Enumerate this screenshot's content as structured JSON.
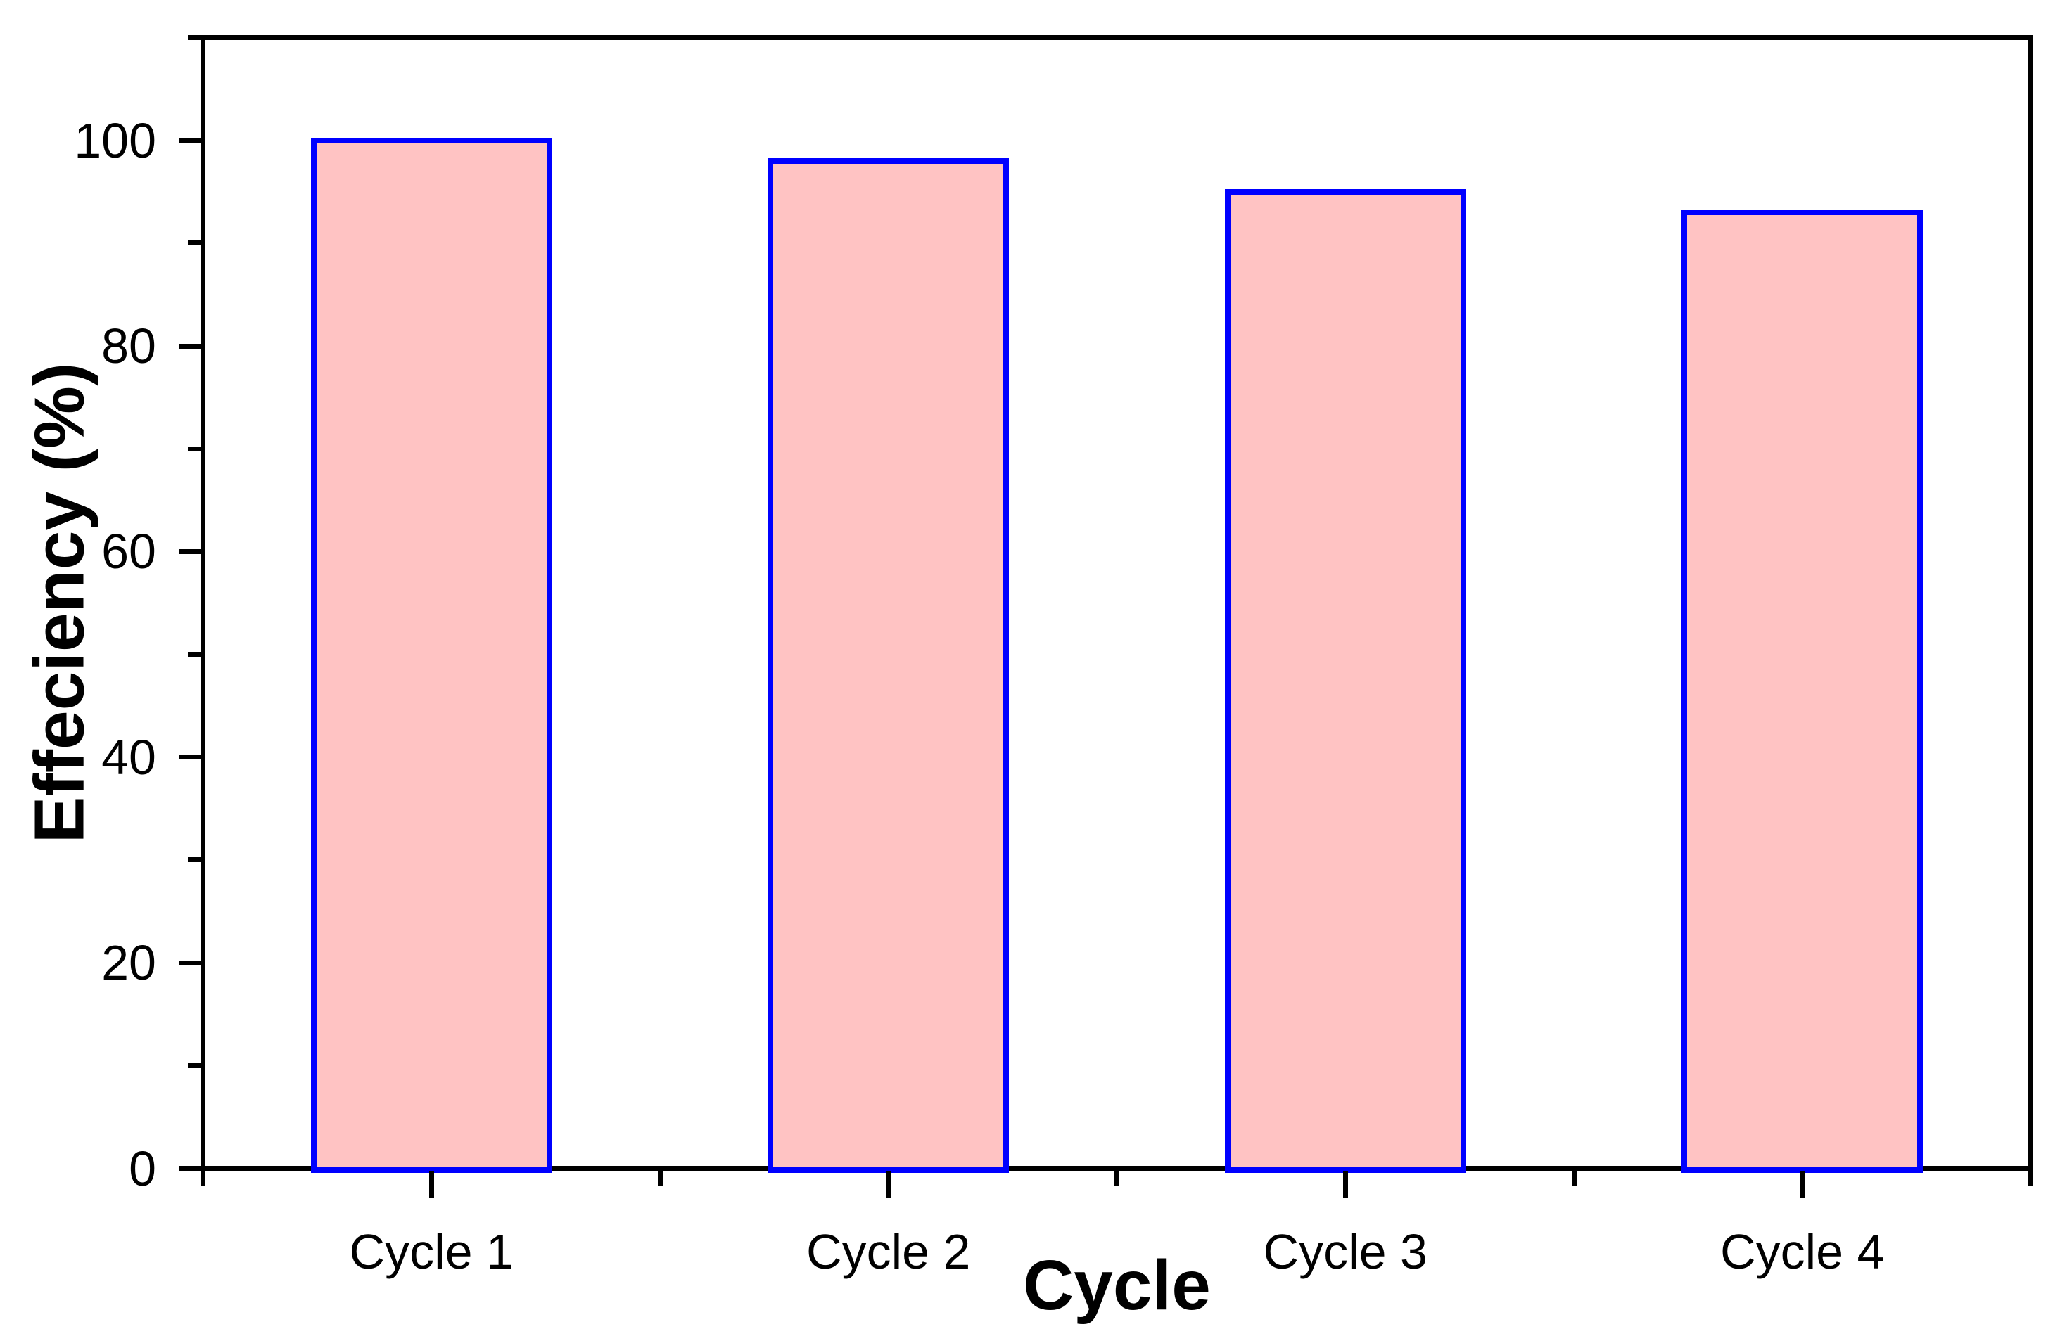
{
  "chart_data": {
    "type": "bar",
    "title": "",
    "xlabel": "Cycle",
    "ylabel": "Effeciency (%)",
    "categories": [
      "Cycle 1",
      "Cycle 2",
      "Cycle 3",
      "Cycle 4"
    ],
    "values": [
      100,
      98,
      95,
      93
    ],
    "ylim": [
      0,
      110
    ],
    "y_major_ticks": [
      0,
      20,
      40,
      60,
      80,
      100
    ],
    "y_minor_ticks": [
      10,
      30,
      50,
      70,
      90,
      110
    ],
    "grid": false,
    "legend": null,
    "bar_fill_color": "#FFC3C3",
    "bar_border_color": "#0000FF",
    "axis_color": "#000000",
    "background_color": "#FFFFFF"
  }
}
